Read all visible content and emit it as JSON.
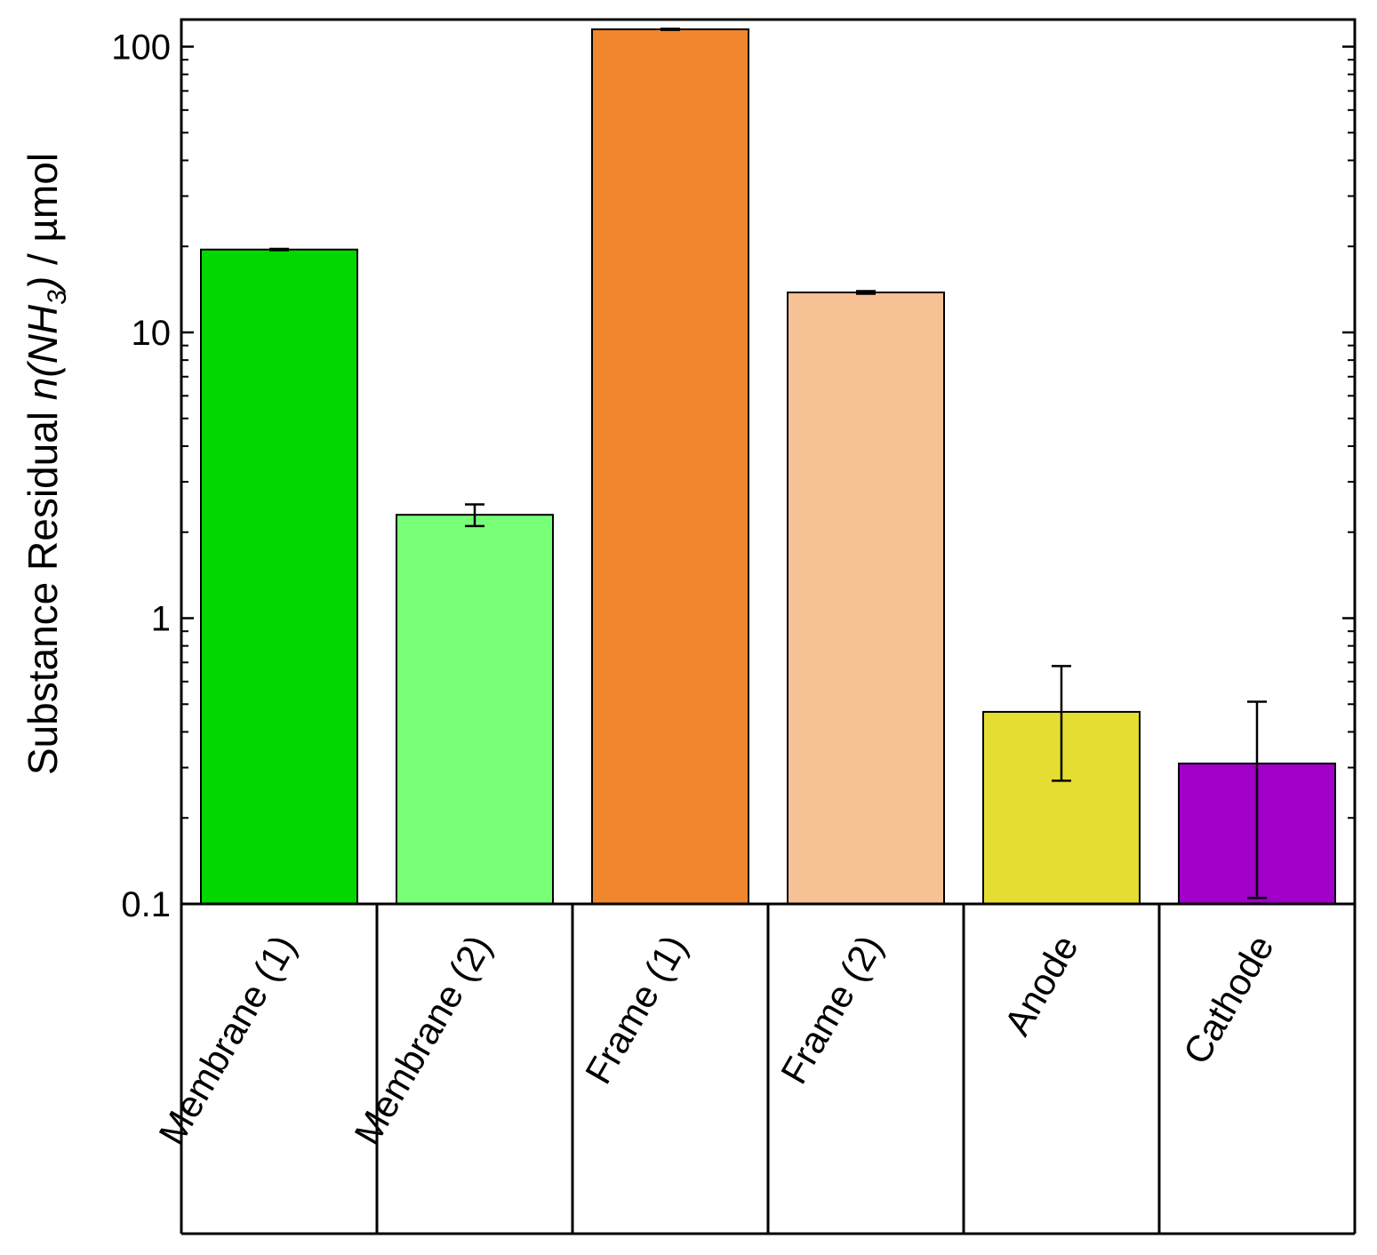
{
  "chart_data": {
    "type": "bar",
    "title": "",
    "xlabel": "",
    "ylabel": {
      "prefix": "Substance Residual ",
      "var": "n",
      "paren_open": "(NH",
      "sub": "3",
      "paren_close": ")",
      "suffix": " / µmol"
    },
    "yscale": "log",
    "ylim": [
      0.1,
      120
    ],
    "yticks": [
      {
        "value": 0.1,
        "label": "0.1"
      },
      {
        "value": 1,
        "label": "1"
      },
      {
        "value": 10,
        "label": "10"
      },
      {
        "value": 100,
        "label": "100"
      }
    ],
    "categories": [
      "Membrane (1)",
      "Membrane (2)",
      "Frame (1)",
      "Frame (2)",
      "Anode",
      "Cathode"
    ],
    "values": [
      19.5,
      2.3,
      115,
      13.8,
      0.47,
      0.31
    ],
    "error_lower": [
      19.4,
      2.1,
      114.5,
      13.65,
      0.27,
      0.105
    ],
    "error_upper": [
      19.6,
      2.5,
      115.5,
      13.95,
      0.68,
      0.51
    ],
    "colors": [
      "#00d800",
      "#78ff78",
      "#f0862d",
      "#f7c196",
      "#e6dd33",
      "#a000c8"
    ]
  }
}
